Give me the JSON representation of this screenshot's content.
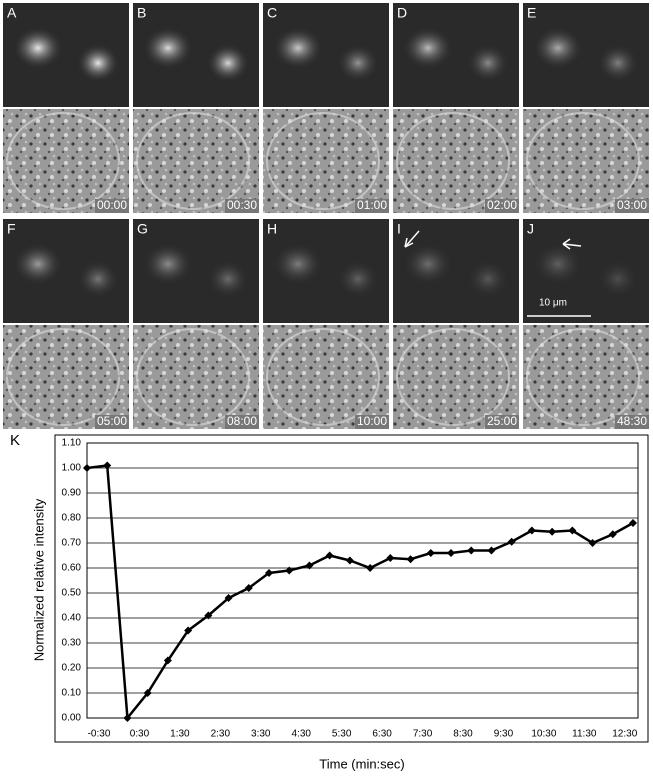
{
  "panels": [
    {
      "label": "A",
      "time": "00:00"
    },
    {
      "label": "B",
      "time": "00:30"
    },
    {
      "label": "C",
      "time": "01:00"
    },
    {
      "label": "D",
      "time": "02:00"
    },
    {
      "label": "E",
      "time": "03:00"
    },
    {
      "label": "F",
      "time": "05:00"
    },
    {
      "label": "G",
      "time": "08:00"
    },
    {
      "label": "H",
      "time": "10:00"
    },
    {
      "label": "I",
      "time": "25:00"
    },
    {
      "label": "J",
      "time": "48:30"
    }
  ],
  "scale_bar": "10 μm",
  "chart_data": {
    "type": "line",
    "panel_label": "K",
    "y_label": "Normalized relative intensity",
    "x_label": "Time (min:sec)",
    "categories": [
      "-0:30",
      null,
      "0:30",
      null,
      "1:30",
      null,
      "2:30",
      null,
      "3:30",
      null,
      "4:30",
      null,
      "5:30",
      null,
      "6:30",
      null,
      "7:30",
      null,
      "8:30",
      null,
      "9:30",
      null,
      "10:30",
      null,
      "11:30",
      null,
      "12:30",
      null
    ],
    "values": [
      1.0,
      1.01,
      0.0,
      0.1,
      0.23,
      0.35,
      0.41,
      0.48,
      0.52,
      0.58,
      0.59,
      0.61,
      0.65,
      0.63,
      0.6,
      0.64,
      0.635,
      0.66,
      0.66,
      0.67,
      0.67,
      0.705,
      0.75,
      0.745,
      0.75,
      0.7,
      0.735,
      0.78
    ],
    "color": "#000000",
    "ylim": [
      0,
      1.1
    ],
    "yticks": [
      {
        "value": 0,
        "label": "0.00"
      },
      {
        "value": 0.1,
        "label": "0.10"
      },
      {
        "value": 0.2,
        "label": "0.20"
      },
      {
        "value": 0.3,
        "label": "0.30"
      },
      {
        "value": 0.4,
        "label": "0.40"
      },
      {
        "value": 0.5,
        "label": "0.50"
      },
      {
        "value": 0.6,
        "label": "0.60"
      },
      {
        "value": 0.7,
        "label": "0.70"
      },
      {
        "value": 0.8,
        "label": "0.80"
      },
      {
        "value": 0.9,
        "label": "0.90"
      },
      {
        "value": 1.0,
        "label": "1.00"
      },
      {
        "value": 1.1,
        "label": "1.10"
      }
    ],
    "grid": true
  }
}
